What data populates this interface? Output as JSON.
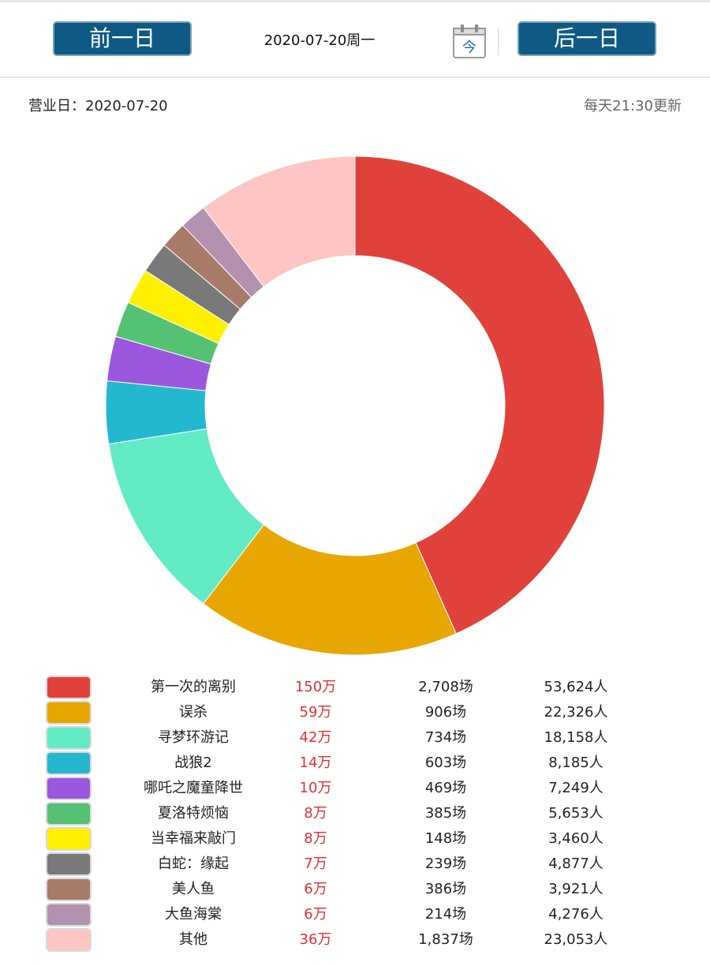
{
  "header": {
    "prev_label": "前一日",
    "next_label": "后一日",
    "date_title": "2020-07-20周一",
    "today_icon_char": "今"
  },
  "info": {
    "business_day": "营业日：2020-07-20",
    "update_note": "每天21:30更新"
  },
  "chart_data": {
    "type": "pie",
    "donut": true,
    "categories": [
      "第一次的离别",
      "误杀",
      "寻梦环游记",
      "战狼2",
      "哪吒之魔童降世",
      "夏洛特烦恼",
      "当幸福来敲门",
      "白蛇：缘起",
      "美人鱼",
      "大鱼海棠",
      "其他"
    ],
    "values": [
      150,
      59,
      42,
      14,
      10,
      8,
      8,
      7,
      6,
      6,
      36
    ],
    "colors": [
      "#e0423b",
      "#e8a600",
      "#63ebc6",
      "#23b8d0",
      "#9b57de",
      "#55c172",
      "#fff000",
      "#797979",
      "#a87a68",
      "#b292b0",
      "#ffc4c4"
    ],
    "legend_placement": "bottom"
  },
  "legend": [
    {
      "name": "第一次的离别",
      "box_office": "150万",
      "shows": "2,708场",
      "people": "53,624人"
    },
    {
      "name": "误杀",
      "box_office": "59万",
      "shows": "906场",
      "people": "22,326人"
    },
    {
      "name": "寻梦环游记",
      "box_office": "42万",
      "shows": "734场",
      "people": "18,158人"
    },
    {
      "name": "战狼2",
      "box_office": "14万",
      "shows": "603场",
      "people": "8,185人"
    },
    {
      "name": "哪吒之魔童降世",
      "box_office": "10万",
      "shows": "469场",
      "people": "7,249人"
    },
    {
      "name": "夏洛特烦恼",
      "box_office": "8万",
      "shows": "385场",
      "people": "5,653人"
    },
    {
      "name": "当幸福来敲门",
      "box_office": "8万",
      "shows": "148场",
      "people": "3,460人"
    },
    {
      "name": "白蛇：缘起",
      "box_office": "7万",
      "shows": "239场",
      "people": "4,877人"
    },
    {
      "name": "美人鱼",
      "box_office": "6万",
      "shows": "386场",
      "people": "3,921人"
    },
    {
      "name": "大鱼海棠",
      "box_office": "6万",
      "shows": "214场",
      "people": "4,276人"
    },
    {
      "name": "其他",
      "box_office": "36万",
      "shows": "1,837场",
      "people": "23,053人"
    }
  ]
}
